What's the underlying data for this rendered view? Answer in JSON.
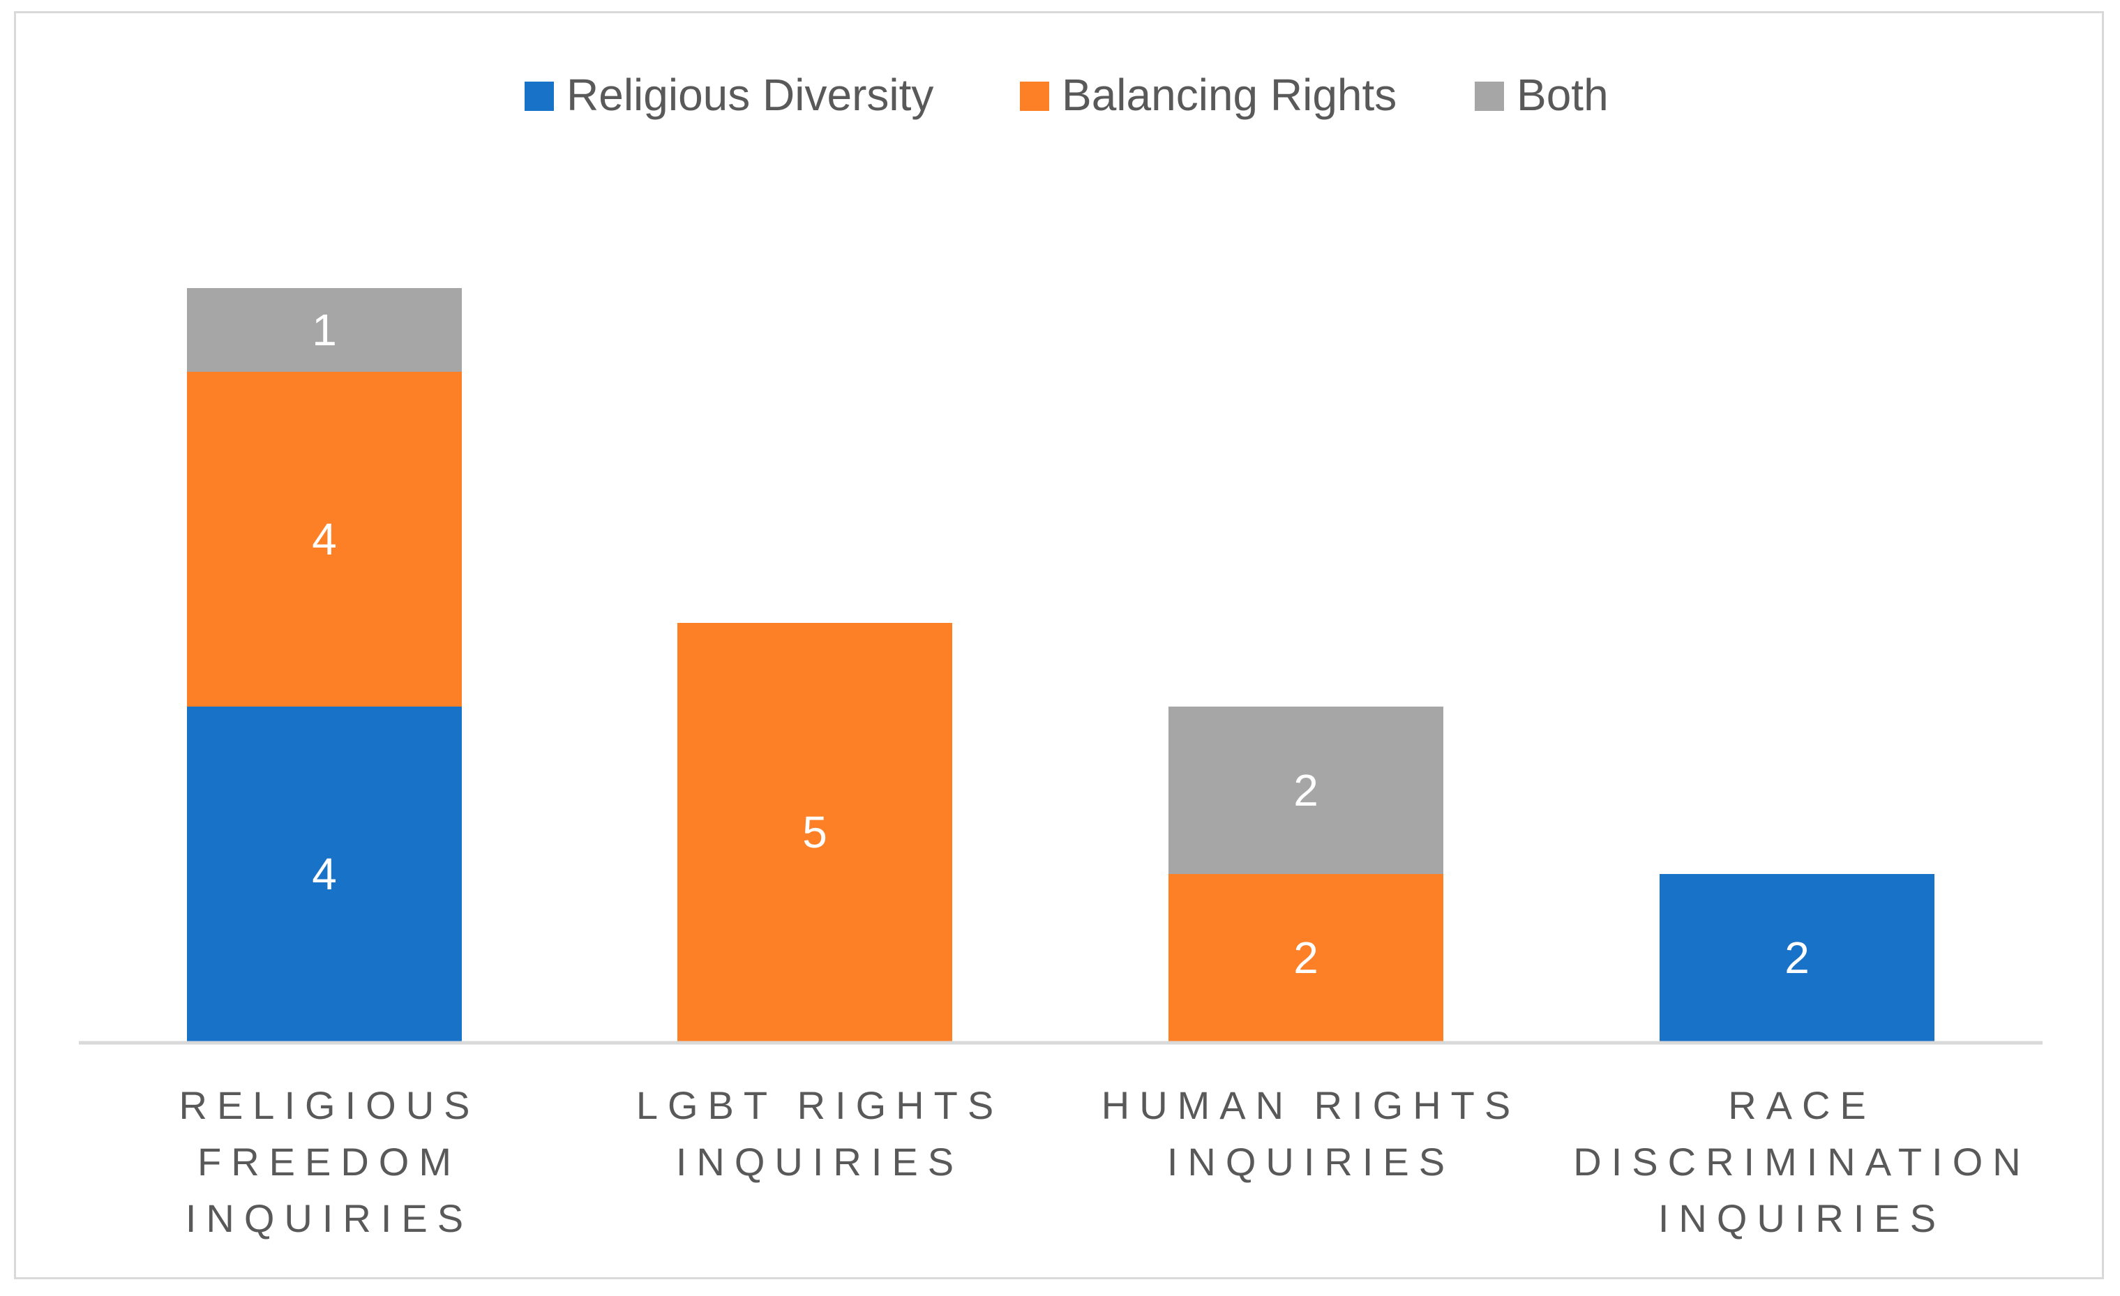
{
  "chart_data": {
    "type": "bar",
    "stacked": true,
    "title": "",
    "xlabel": "",
    "ylabel": "",
    "ylim": [
      0,
      9
    ],
    "grid": false,
    "legend_position": "top-center",
    "categories": [
      "RELIGIOUS FREEDOM INQUIRIES",
      "LGBT RIGHTS INQUIRIES",
      "HUMAN RIGHTS INQUIRIES",
      "RACE DISCRIMINATION INQUIRIES"
    ],
    "category_lines": [
      [
        "RELIGIOUS",
        "FREEDOM",
        "INQUIRIES"
      ],
      [
        "LGBT RIGHTS",
        "INQUIRIES"
      ],
      [
        "HUMAN RIGHTS",
        "INQUIRIES"
      ],
      [
        "RACE",
        "DISCRIMINATION",
        "INQUIRIES"
      ]
    ],
    "series": [
      {
        "name": "Religious Diversity",
        "color": "#1873C8",
        "values": [
          4,
          null,
          null,
          2
        ]
      },
      {
        "name": "Balancing Rights",
        "color": "#FD7F26",
        "values": [
          4,
          5,
          2,
          null
        ]
      },
      {
        "name": "Both",
        "color": "#A6A6A6",
        "values": [
          1,
          null,
          2,
          null
        ]
      }
    ]
  }
}
